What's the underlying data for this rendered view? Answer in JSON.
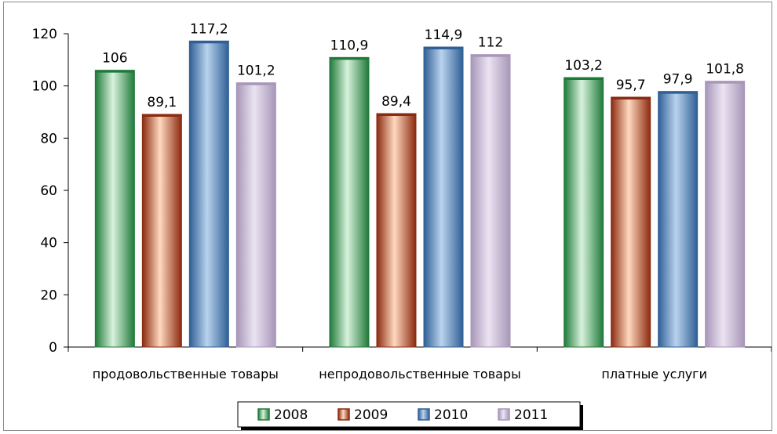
{
  "chart_data": {
    "type": "bar",
    "categories": [
      "продовольственные товары",
      "непродовольственные товары",
      "платные услуги"
    ],
    "series": [
      {
        "name": "2008",
        "values": [
          106,
          110.9,
          103.2
        ],
        "labels": [
          "106",
          "110,9",
          "103,2"
        ],
        "color": "#1f7a3a",
        "light": "#d8f2dc"
      },
      {
        "name": "2009",
        "values": [
          89.1,
          89.4,
          95.7
        ],
        "labels": [
          "89,1",
          "89,4",
          "95,7"
        ],
        "color": "#8b2a10",
        "light": "#ffd9bf"
      },
      {
        "name": "2010",
        "values": [
          117.2,
          114.9,
          97.9
        ],
        "labels": [
          "117,2",
          "114,9",
          "97,9"
        ],
        "color": "#2f5f95",
        "light": "#b9d3ee"
      },
      {
        "name": "2011",
        "values": [
          101.2,
          112,
          101.8
        ],
        "labels": [
          "101,2",
          "112",
          "101,8"
        ],
        "color": "#a796b8",
        "light": "#ebe3f2"
      }
    ],
    "yticks": [
      "0",
      "20",
      "40",
      "60",
      "80",
      "100",
      "120"
    ],
    "ylim": [
      0,
      120
    ],
    "grid": false,
    "legend_position": "bottom"
  }
}
